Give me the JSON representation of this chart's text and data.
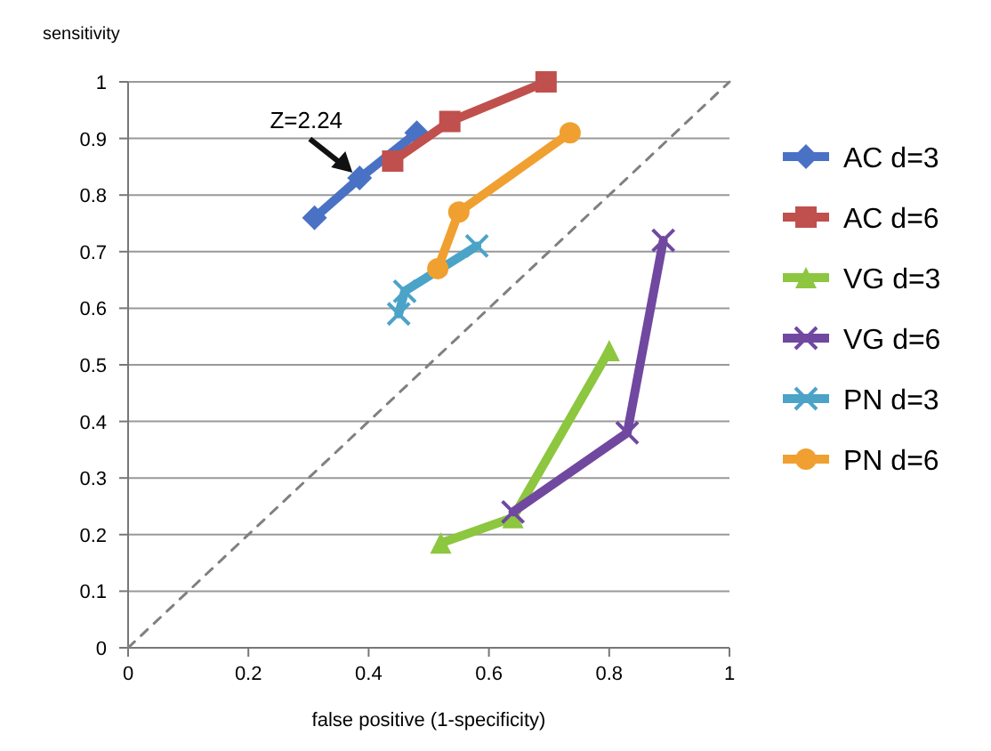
{
  "chart_data": {
    "type": "line",
    "xlabel": "false positive (1-specificity)",
    "ylabel": "sensitivity",
    "xlim": [
      0,
      1
    ],
    "ylim": [
      0,
      1
    ],
    "xticks": [
      0,
      0.2,
      0.4,
      0.6,
      0.8,
      1
    ],
    "yticks": [
      0,
      0.1,
      0.2,
      0.3,
      0.4,
      0.5,
      0.6,
      0.7,
      0.8,
      0.9,
      1
    ],
    "grid": "y",
    "legend": "right",
    "annotations": [
      {
        "text": "Z=2.24",
        "x": 0.385,
        "y": 0.83
      }
    ],
    "series": [
      {
        "name": "AC d=3",
        "color": "#4a72c4",
        "marker": "diamond",
        "x": [
          0.31,
          0.385,
          0.48
        ],
        "values": [
          0.76,
          0.83,
          0.91
        ]
      },
      {
        "name": "AC d=6",
        "color": "#c0504d",
        "marker": "square",
        "x": [
          0.44,
          0.535,
          0.695
        ],
        "values": [
          0.86,
          0.93,
          1.0
        ]
      },
      {
        "name": "VG d=3",
        "color": "#8dc63f",
        "marker": "triangle",
        "x": [
          0.52,
          0.64,
          0.8
        ],
        "values": [
          0.185,
          0.23,
          0.525
        ]
      },
      {
        "name": "VG d=6",
        "color": "#7048a0",
        "marker": "cross",
        "x": [
          0.64,
          0.83,
          0.89
        ],
        "values": [
          0.24,
          0.38,
          0.72
        ]
      },
      {
        "name": "PN d=3",
        "color": "#4ba3c8",
        "marker": "cross",
        "x": [
          0.45,
          0.46,
          0.58
        ],
        "values": [
          0.59,
          0.63,
          0.71
        ]
      },
      {
        "name": "PN d=6",
        "color": "#f0a030",
        "marker": "circle",
        "x": [
          0.515,
          0.55,
          0.735
        ],
        "values": [
          0.67,
          0.77,
          0.91
        ]
      },
      {
        "color": "#808080",
        "marker": "none",
        "line_style": "dashed",
        "x": [
          0,
          1
        ],
        "values": [
          0,
          1
        ]
      }
    ]
  }
}
